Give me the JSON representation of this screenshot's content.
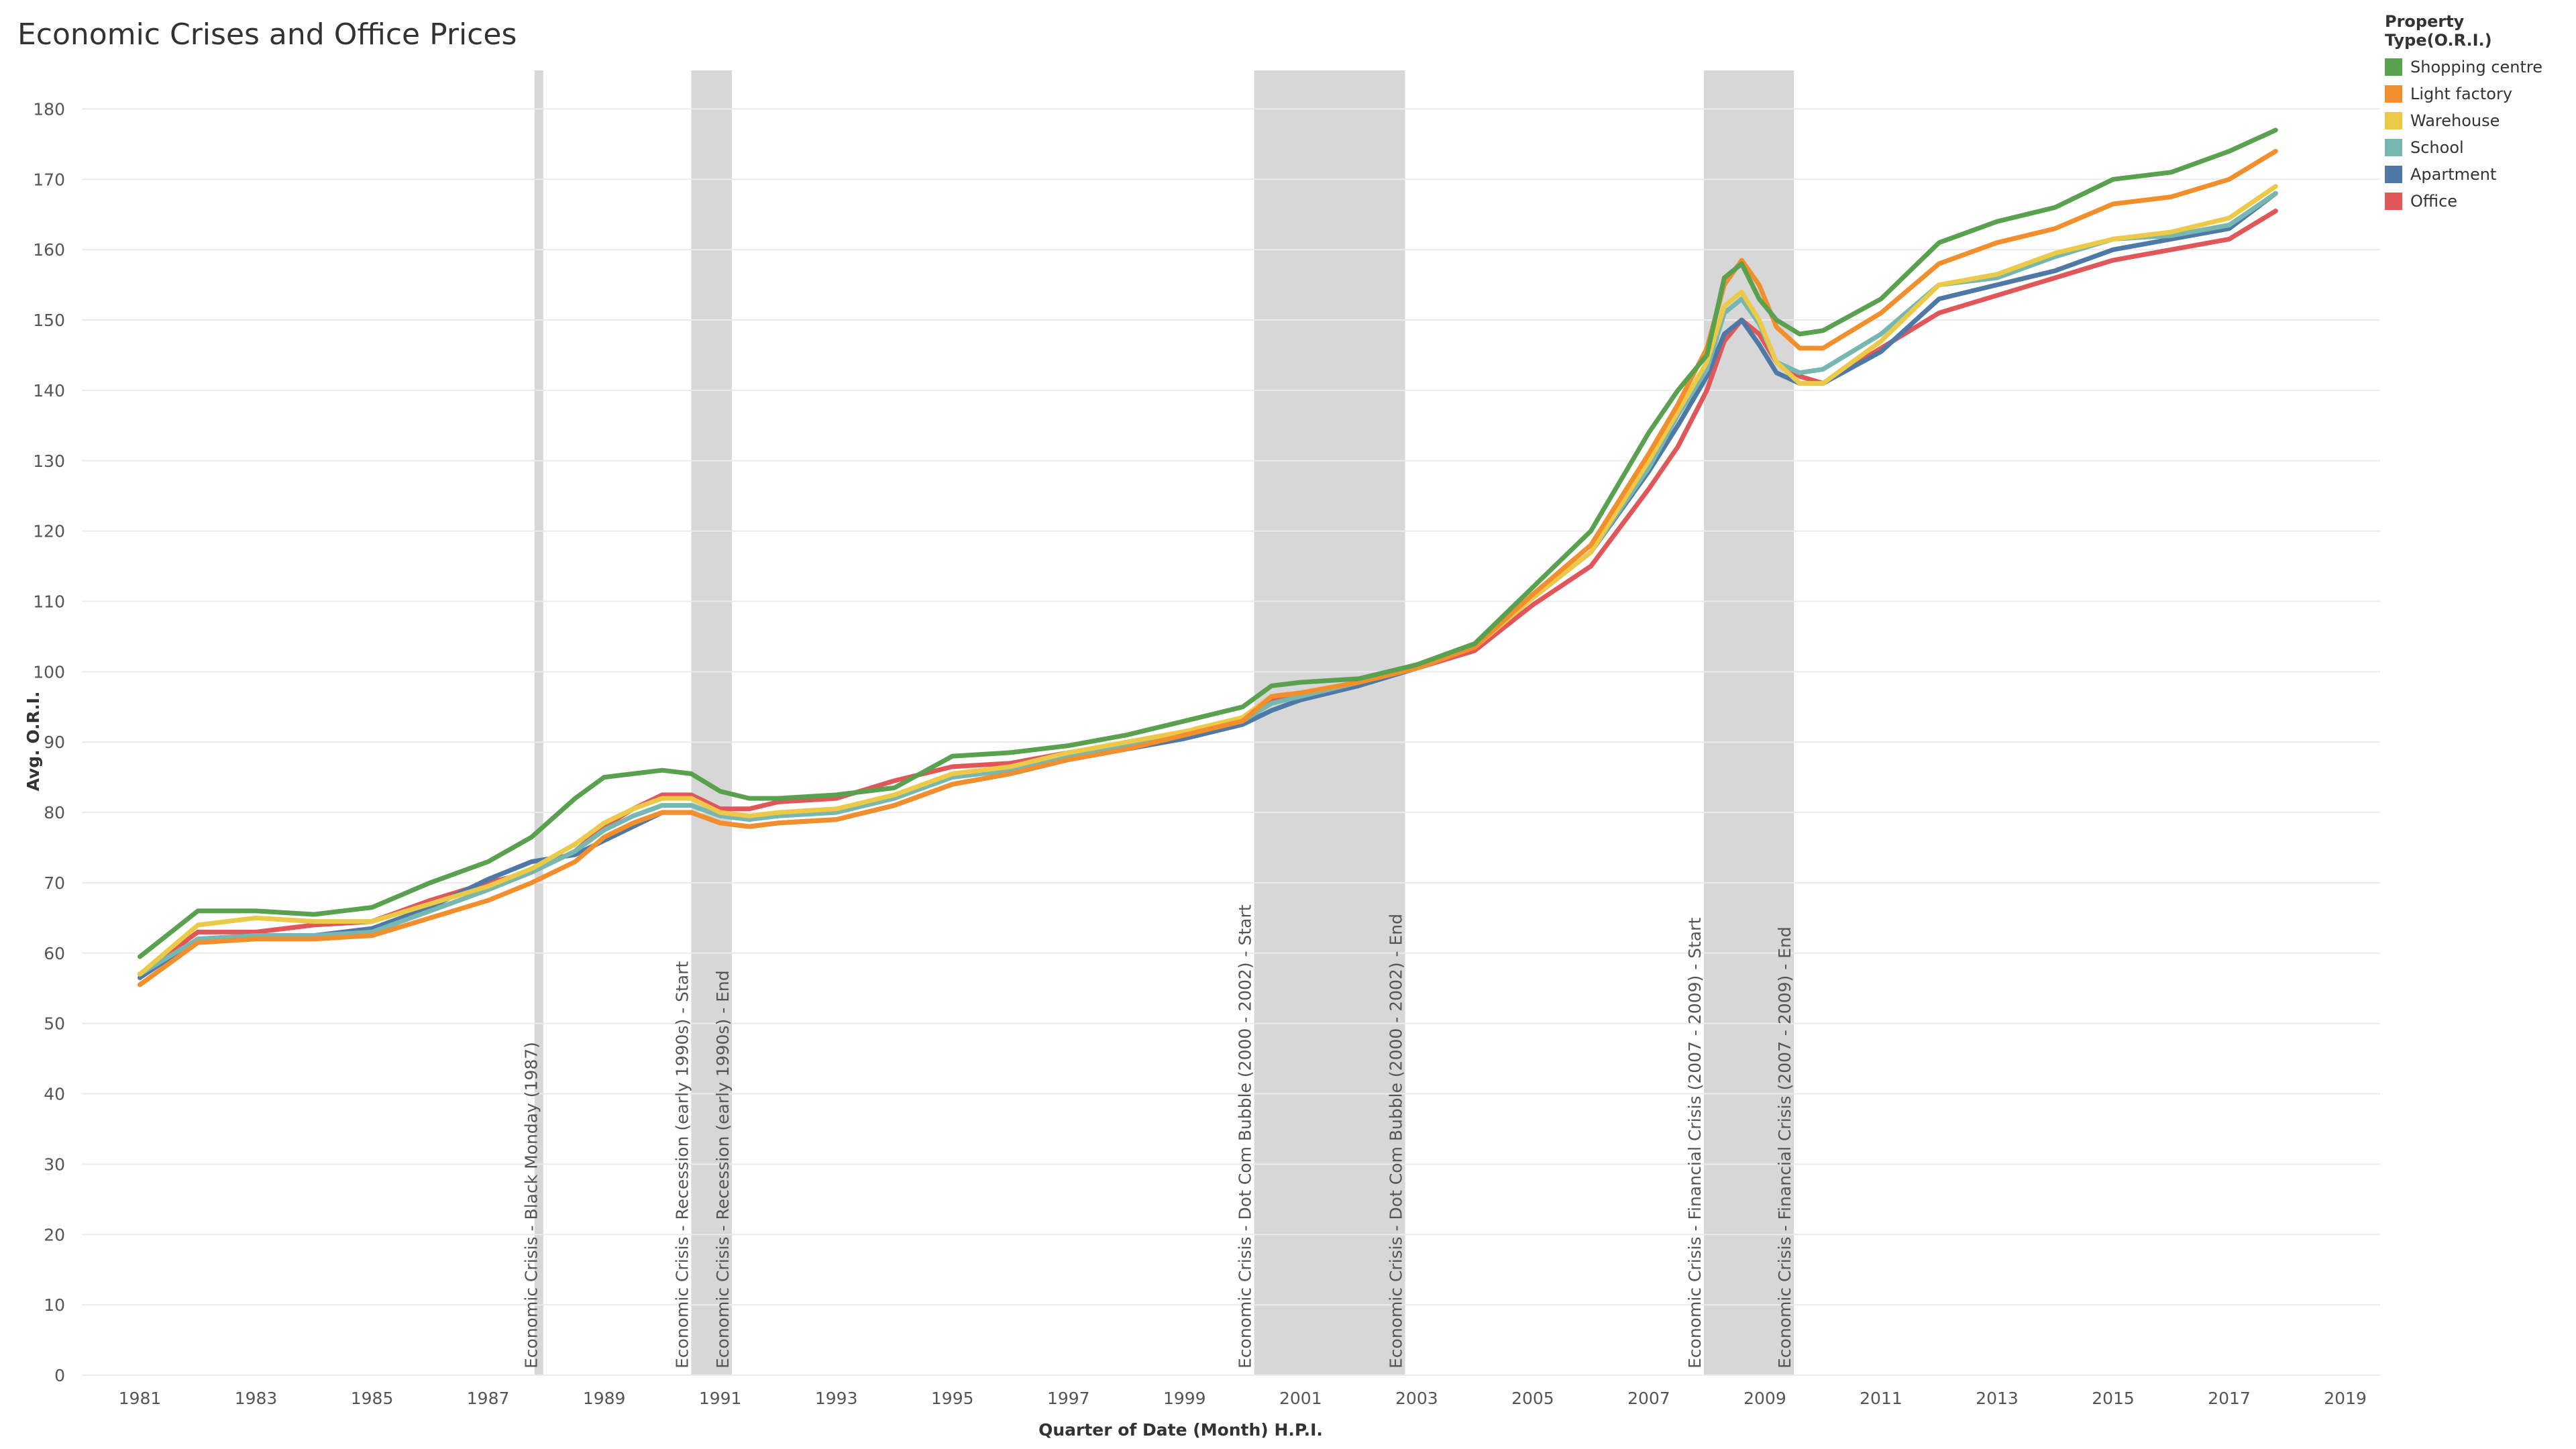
{
  "chart_data": {
    "type": "line",
    "title": "Economic Crises and Office Prices",
    "xlabel": "Quarter of Date (Month) H.P.I.",
    "ylabel": "Avg. O.R.I.",
    "ylim": [
      0,
      185
    ],
    "xlim": [
      1980.0,
      2019.6
    ],
    "y_ticks": [
      0,
      10,
      20,
      30,
      40,
      50,
      60,
      70,
      80,
      90,
      100,
      110,
      120,
      130,
      140,
      150,
      160,
      170,
      180
    ],
    "x_ticks": [
      "1981",
      "1983",
      "1985",
      "1987",
      "1989",
      "1991",
      "1993",
      "1995",
      "1997",
      "1999",
      "2001",
      "2003",
      "2005",
      "2007",
      "2009",
      "2011",
      "2013",
      "2015",
      "2017",
      "2019"
    ],
    "grid": "horizontal",
    "legend_title": "Property Type(O.R.I.)",
    "legend_position": "top-right",
    "x": [
      1981.0,
      1982.0,
      1983.0,
      1984.0,
      1985.0,
      1986.0,
      1987.0,
      1987.75,
      1988.5,
      1989.0,
      1989.5,
      1990.0,
      1990.5,
      1991.0,
      1991.5,
      1992.0,
      1993.0,
      1994.0,
      1995.0,
      1996.0,
      1997.0,
      1998.0,
      1999.0,
      2000.0,
      2000.5,
      2001.0,
      2002.0,
      2003.0,
      2004.0,
      2005.0,
      2006.0,
      2007.0,
      2007.5,
      2008.0,
      2008.3,
      2008.6,
      2008.9,
      2009.2,
      2009.6,
      2010.0,
      2011.0,
      2012.0,
      2013.0,
      2014.0,
      2015.0,
      2016.0,
      2017.0,
      2017.8
    ],
    "series": [
      {
        "name": "Shopping centre",
        "color": "#59a14f",
        "values": [
          59.5,
          66,
          66,
          65.5,
          66.5,
          70,
          73,
          76.5,
          82,
          85,
          85.5,
          86,
          85.5,
          83,
          82,
          82,
          82.5,
          83.5,
          88,
          88.5,
          89.5,
          91,
          93,
          95,
          98,
          98.5,
          99,
          101,
          104,
          112,
          120,
          134,
          140,
          145,
          156,
          158,
          153,
          150,
          148,
          148.5,
          153,
          161,
          164,
          166,
          170,
          171,
          174,
          177
        ]
      },
      {
        "name": "Light factory",
        "color": "#f28e2b",
        "values": [
          55.5,
          61.5,
          62,
          62,
          62.5,
          65,
          67.5,
          70,
          73,
          76.5,
          78.5,
          80,
          80,
          78.5,
          78,
          78.5,
          79,
          81,
          84,
          85.5,
          87.5,
          89,
          91,
          93,
          96.5,
          97,
          98.5,
          100.5,
          103.5,
          111,
          118,
          131,
          138,
          146,
          155,
          158.5,
          155,
          149,
          146,
          146,
          151,
          158,
          161,
          163,
          166.5,
          167.5,
          170,
          174
        ]
      },
      {
        "name": "Warehouse",
        "color": "#edc948",
        "values": [
          57,
          64,
          65,
          64.5,
          64.5,
          67,
          69.5,
          72,
          75.5,
          78.5,
          80.5,
          82,
          82,
          80,
          79.5,
          80,
          80.5,
          82.5,
          85.5,
          86.5,
          88.5,
          90,
          91.5,
          93.5,
          96.5,
          97,
          98.5,
          100.5,
          103.5,
          110.5,
          117,
          130,
          137,
          144,
          152,
          154,
          150,
          144,
          141,
          141,
          147,
          155,
          156.5,
          159.5,
          161.5,
          162.5,
          164.5,
          169
        ]
      },
      {
        "name": "School",
        "color": "#76b7b2",
        "values": [
          57,
          62,
          62.5,
          62.5,
          63,
          66,
          69,
          71.5,
          74.5,
          77.5,
          79.5,
          81,
          81,
          79.5,
          79,
          79.5,
          80,
          82,
          85,
          86,
          88,
          89.5,
          91,
          93,
          95.5,
          96.5,
          98.5,
          100.5,
          103.5,
          110.5,
          117,
          129,
          136.5,
          143,
          151,
          153,
          149.5,
          144,
          142.5,
          143,
          148,
          155,
          156,
          159,
          161.5,
          162,
          163.5,
          168
        ]
      },
      {
        "name": "Apartment",
        "color": "#4e79a7",
        "values": [
          56.5,
          62,
          62.5,
          62.5,
          63.5,
          66.5,
          70.5,
          73,
          74,
          76,
          78,
          80,
          80,
          78.5,
          78,
          78.5,
          79,
          81,
          84,
          85.5,
          87.5,
          89,
          90.5,
          92.5,
          94.5,
          96,
          98,
          100.5,
          103.5,
          110.5,
          117,
          128.5,
          135,
          142,
          148,
          150,
          146.5,
          142.5,
          141,
          141,
          145.5,
          153,
          155,
          157,
          160,
          161.5,
          163,
          168
        ]
      },
      {
        "name": "Office",
        "color": "#e15759",
        "values": [
          57,
          63,
          63,
          64,
          64.5,
          67.5,
          70,
          71.5,
          74.5,
          78,
          80.5,
          82.5,
          82.5,
          80.5,
          80.5,
          81.5,
          82,
          84.5,
          86.5,
          87,
          88.5,
          89.5,
          91.5,
          93,
          96,
          96.5,
          98.5,
          100.5,
          103,
          109.5,
          115,
          126,
          132,
          140,
          147,
          150,
          148,
          144,
          142,
          141,
          146,
          151,
          153.5,
          156,
          158.5,
          160,
          161.5,
          165.5
        ]
      }
    ],
    "crisis_bands": [
      {
        "start": 1987.8,
        "end": 1987.95,
        "labels": [
          "Economic Crisis - Black Monday (1987)"
        ]
      },
      {
        "start": 1990.5,
        "end": 1991.2,
        "labels": [
          "Economic Crisis - Recession (early 1990s) - Start",
          "Economic Crisis - Recession (early 1990s) - End"
        ]
      },
      {
        "start": 2000.2,
        "end": 2002.8,
        "labels": [
          "Economic Crisis - Dot Com Bubble (2000 - 2002) - Start",
          "Economic Crisis - Dot Com Bubble (2000 - 2002) - End"
        ]
      },
      {
        "start": 2007.95,
        "end": 2009.5,
        "labels": [
          "Economic Crisis - Financial Crisis (2007 - 2009) - Start",
          "Economic Crisis - Financial Crisis (2007 - 2009) - End"
        ]
      }
    ]
  }
}
